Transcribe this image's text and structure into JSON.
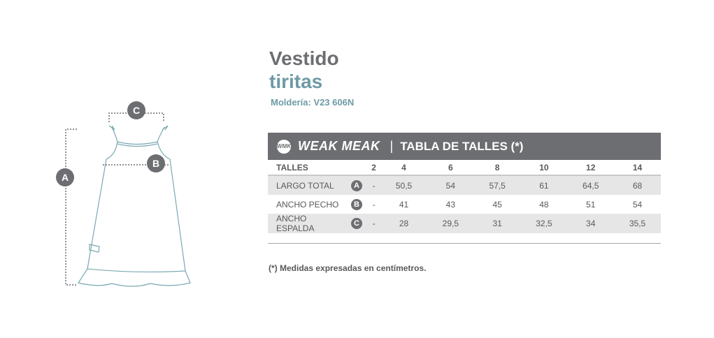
{
  "title": {
    "line1": "Vestido",
    "line2": "tiritas",
    "molderia": "Moldería: V23 606N"
  },
  "bar": {
    "logo": "WMK",
    "brand": "WEAK MEAK",
    "separator": "|",
    "title": "TABLA DE TALLES (*)"
  },
  "colors": {
    "gray": "#6d6e71",
    "teal": "#6e9aa5",
    "stripe": "#e6e6e6"
  },
  "table": {
    "header": [
      "TALLES",
      "2",
      "4",
      "6",
      "8",
      "10",
      "12",
      "14"
    ],
    "rows": [
      {
        "label": "LARGO TOTAL",
        "marker": "A",
        "values": [
          "-",
          "50,5",
          "54",
          "57,5",
          "61",
          "64,5",
          "68"
        ]
      },
      {
        "label": "ANCHO PECHO",
        "marker": "B",
        "values": [
          "-",
          "41",
          "43",
          "45",
          "48",
          "51",
          "54"
        ]
      },
      {
        "label": "ANCHO ESPALDA",
        "marker": "C",
        "values": [
          "-",
          "28",
          "29,5",
          "31",
          "32,5",
          "34",
          "35,5"
        ]
      }
    ]
  },
  "note": "(*) Medidas expresadas en centímetros.",
  "diagram": {
    "markers": [
      "A",
      "B",
      "C"
    ]
  }
}
